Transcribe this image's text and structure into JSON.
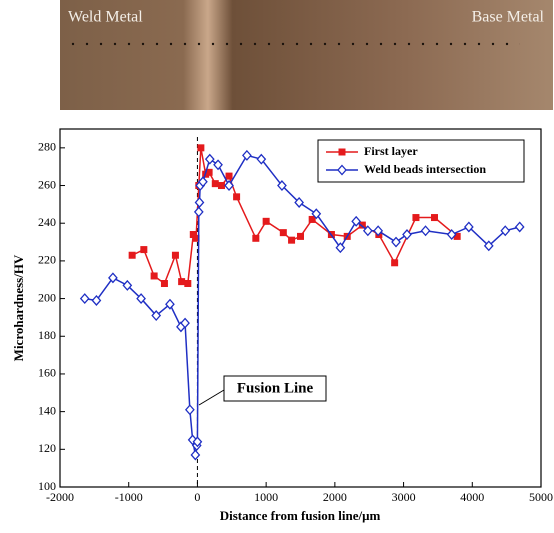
{
  "image_labels": {
    "left": "Weld Metal",
    "right": "Base Metal"
  },
  "chart_data": {
    "type": "line",
    "xlabel": "Distance from fusion line/μm",
    "ylabel": "Microhardness/HV",
    "annotation": "Fusion Line",
    "xlim": [
      -2000,
      5000
    ],
    "ylim": [
      100,
      290
    ],
    "xticks": [
      -2000,
      -1000,
      0,
      1000,
      2000,
      3000,
      4000,
      5000
    ],
    "yticks": [
      100,
      120,
      140,
      160,
      180,
      200,
      220,
      240,
      260,
      280
    ],
    "legend": "top-right",
    "series": [
      {
        "name": "First layer",
        "color": "#e41a1c",
        "marker": "square",
        "x": [
          -950,
          -780,
          -630,
          -480,
          -320,
          -230,
          -140,
          -60,
          -20,
          20,
          50,
          120,
          170,
          260,
          350,
          460,
          570,
          850,
          1000,
          1250,
          1370,
          1500,
          1670,
          1950,
          2180,
          2400,
          2640,
          2870,
          3180,
          3450,
          3780
        ],
        "values": [
          223,
          226,
          212,
          208,
          223,
          209,
          208,
          234,
          232,
          260,
          280,
          266,
          267,
          261,
          260,
          265,
          254,
          232,
          241,
          235,
          231,
          233,
          242,
          234,
          233,
          239,
          234,
          219,
          243,
          243,
          233
        ]
      },
      {
        "name": "Weld beads intersection",
        "color": "#1f2fc4",
        "marker": "diamond",
        "x": [
          -1640,
          -1470,
          -1230,
          -1020,
          -820,
          -600,
          -400,
          -240,
          -180,
          -110,
          -70,
          -30,
          -10,
          0,
          20,
          30,
          40,
          80,
          180,
          300,
          460,
          720,
          930,
          1230,
          1480,
          1730,
          2080,
          2310,
          2480,
          2630,
          2890,
          3050,
          3320,
          3700,
          3950,
          4240,
          4480,
          4690
        ],
        "values": [
          200,
          199,
          211,
          207,
          200,
          191,
          197,
          185,
          187,
          141,
          125,
          117,
          122,
          124,
          246,
          251,
          260,
          262,
          274,
          271,
          260,
          276,
          274,
          260,
          251,
          245,
          227,
          241,
          236,
          236,
          230,
          234,
          236,
          234,
          238,
          228,
          236,
          238
        ]
      }
    ]
  }
}
